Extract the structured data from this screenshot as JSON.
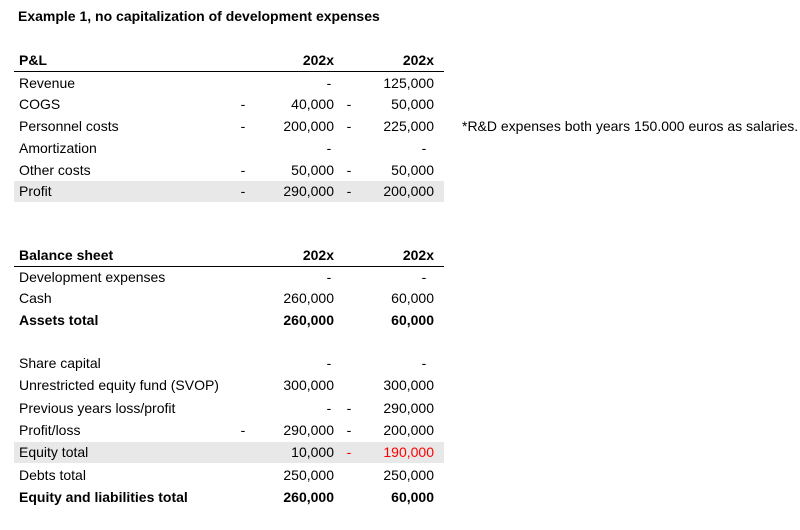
{
  "title": "Example 1, no capitalization of development expenses",
  "pl": {
    "header": {
      "label": "P&L",
      "col1": "202x",
      "col2": "202x"
    },
    "rows": [
      {
        "label": "Revenue",
        "d1": "",
        "v1": "-",
        "d2": "",
        "v2": "125,000"
      },
      {
        "label": "COGS",
        "d1": "-",
        "v1": "40,000",
        "d2": "-",
        "v2": "50,000"
      },
      {
        "label": "Personnel costs",
        "d1": "-",
        "v1": "200,000",
        "d2": "-",
        "v2": "225,000"
      },
      {
        "label": "Amortization",
        "d1": "",
        "v1": "-",
        "d2": "",
        "v2": "-"
      },
      {
        "label": "Other costs",
        "d1": "-",
        "v1": "50,000",
        "d2": "-",
        "v2": "50,000"
      },
      {
        "label": "Profit",
        "d1": "-",
        "v1": "290,000",
        "d2": "-",
        "v2": "200,000"
      }
    ],
    "note": "*R&D expenses both years 150.000 euros as salaries."
  },
  "balance": {
    "header": {
      "label": "Balance sheet",
      "col1": "202x",
      "col2": "202x"
    },
    "rows": [
      {
        "label": "Development expenses",
        "d1": "",
        "v1": "-",
        "d2": "",
        "v2": "-"
      },
      {
        "label": "Cash",
        "d1": "",
        "v1": "260,000",
        "d2": "",
        "v2": "60,000"
      },
      {
        "label": "Assets total",
        "d1": "",
        "v1": "260,000",
        "d2": "",
        "v2": "60,000"
      },
      {
        "label": "Share capital",
        "d1": "",
        "v1": "-",
        "d2": "",
        "v2": "-"
      },
      {
        "label": "Unrestricted equity fund (SVOP)",
        "d1": "",
        "v1": "300,000",
        "d2": "",
        "v2": "300,000"
      },
      {
        "label": "Previous years loss/profit",
        "d1": "",
        "v1": "-",
        "d2": "-",
        "v2": "290,000"
      },
      {
        "label": "Profit/loss",
        "d1": "-",
        "v1": "290,000",
        "d2": "-",
        "v2": "200,000"
      },
      {
        "label": "Equity total",
        "d1": "",
        "v1": "10,000",
        "d2": "-",
        "v2": "190,000"
      },
      {
        "label": "Debts total",
        "d1": "",
        "v1": "250,000",
        "d2": "",
        "v2": "250,000"
      },
      {
        "label": "Equity and liabilities total",
        "d1": "",
        "v1": "260,000",
        "d2": "",
        "v2": "60,000"
      }
    ]
  },
  "colors": {
    "highlight_row": "#e8e8e8",
    "negative_text": "#ff0000"
  }
}
